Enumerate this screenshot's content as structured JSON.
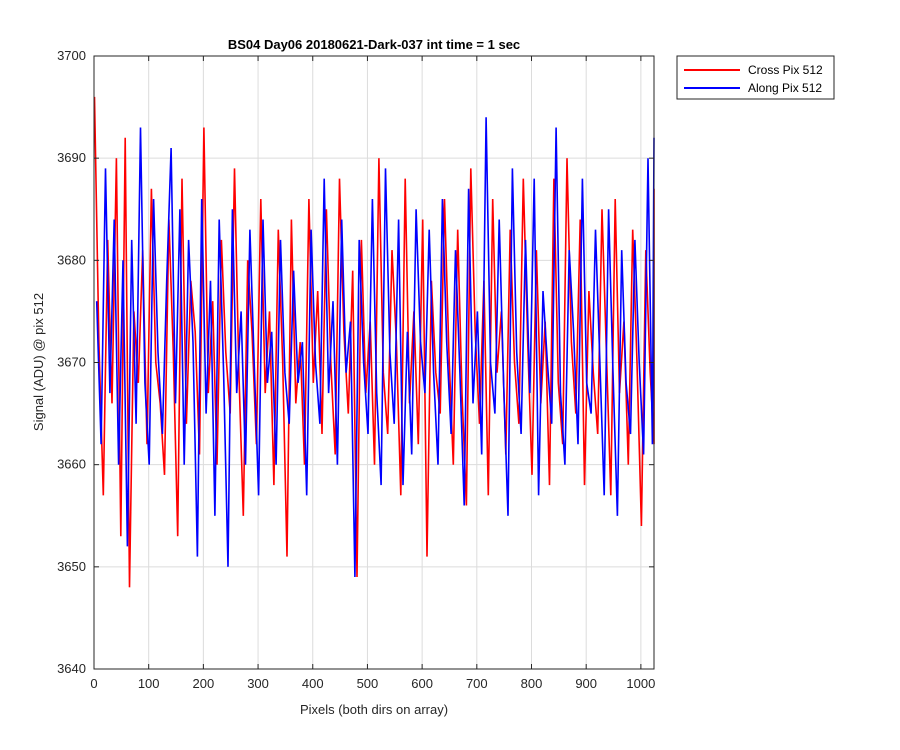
{
  "chart_data": {
    "type": "line",
    "title": "BS04 Day06 20180621-Dark-037 int time = 1 sec",
    "xlabel": "Pixels (both dirs on array)",
    "ylabel": "Signal (ADU) @ pix 512",
    "xlim": [
      0,
      1024
    ],
    "ylim": [
      3640,
      3700
    ],
    "xticks": [
      0,
      100,
      200,
      300,
      400,
      500,
      600,
      700,
      800,
      900,
      1000
    ],
    "yticks": [
      3640,
      3650,
      3660,
      3670,
      3680,
      3690,
      3700
    ],
    "grid": true,
    "legend_position": "outside-top-right",
    "series": [
      {
        "name": "Cross Pix 512",
        "color": "#ff0000",
        "x_start": 1,
        "x_step": 8,
        "values": [
          3696,
          3672,
          3657,
          3682,
          3666,
          3690,
          3653,
          3692,
          3648,
          3675,
          3668,
          3681,
          3662,
          3687,
          3670,
          3666,
          3659,
          3684,
          3671,
          3653,
          3688,
          3664,
          3678,
          3673,
          3661,
          3693,
          3667,
          3676,
          3660,
          3682,
          3671,
          3665,
          3689,
          3669,
          3655,
          3680,
          3673,
          3662,
          3686,
          3667,
          3675,
          3658,
          3683,
          3670,
          3651,
          3684,
          3666,
          3672,
          3660,
          3686,
          3668,
          3677,
          3663,
          3685,
          3670,
          3661,
          3688,
          3673,
          3665,
          3679,
          3649,
          3682,
          3667,
          3674,
          3660,
          3690,
          3669,
          3663,
          3681,
          3672,
          3657,
          3688,
          3666,
          3675,
          3662,
          3684,
          3651,
          3678,
          3669,
          3665,
          3686,
          3671,
          3660,
          3683,
          3667,
          3656,
          3689,
          3673,
          3664,
          3678,
          3657,
          3686,
          3669,
          3675,
          3661,
          3683,
          3670,
          3664,
          3688,
          3672,
          3659,
          3681,
          3666,
          3674,
          3658,
          3688,
          3668,
          3662,
          3690,
          3672,
          3665,
          3684,
          3658,
          3677,
          3669,
          3663,
          3685,
          3671,
          3657,
          3686,
          3667,
          3674,
          3660,
          3683,
          3670,
          3654,
          3681,
          3669,
          3662,
          3687,
          3671
        ],
        "visible_extremes": {
          "min": 3648,
          "max": 3696
        }
      },
      {
        "name": "Along Pix 512",
        "color": "#0000ff",
        "x_start": 5,
        "x_step": 8,
        "values": [
          3676,
          3662,
          3689,
          3667,
          3684,
          3660,
          3680,
          3652,
          3682,
          3664,
          3693,
          3668,
          3660,
          3686,
          3671,
          3663,
          3678,
          3691,
          3666,
          3685,
          3660,
          3682,
          3672,
          3651,
          3686,
          3665,
          3678,
          3655,
          3684,
          3669,
          3650,
          3685,
          3667,
          3675,
          3660,
          3683,
          3670,
          3657,
          3684,
          3668,
          3673,
          3660,
          3682,
          3669,
          3664,
          3679,
          3668,
          3672,
          3657,
          3683,
          3670,
          3664,
          3688,
          3667,
          3676,
          3660,
          3684,
          3669,
          3674,
          3649,
          3682,
          3670,
          3663,
          3686,
          3667,
          3658,
          3689,
          3671,
          3664,
          3684,
          3658,
          3673,
          3661,
          3685,
          3672,
          3667,
          3683,
          3669,
          3660,
          3686,
          3672,
          3663,
          3681,
          3669,
          3656,
          3687,
          3666,
          3675,
          3661,
          3694,
          3670,
          3665,
          3684,
          3668,
          3655,
          3689,
          3671,
          3663,
          3682,
          3667,
          3688,
          3657,
          3677,
          3670,
          3664,
          3693,
          3667,
          3660,
          3681,
          3673,
          3662,
          3688,
          3668,
          3665,
          3683,
          3670,
          3657,
          3685,
          3669,
          3655,
          3681,
          3668,
          3663,
          3682,
          3670,
          3661,
          3690,
          3662,
          3692
        ],
        "visible_extremes": {
          "min": 3649,
          "max": 3694
        }
      }
    ]
  }
}
